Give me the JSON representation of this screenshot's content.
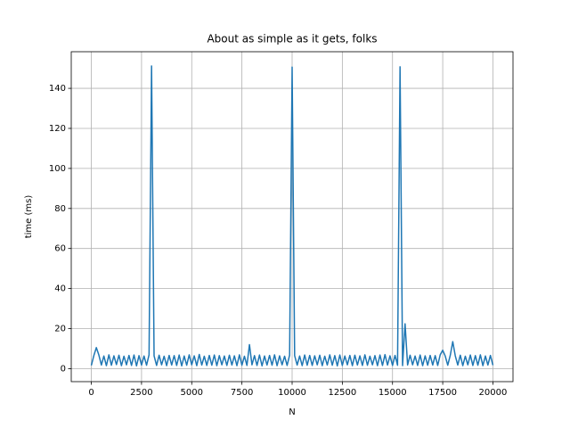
{
  "chart_data": {
    "type": "line",
    "title": "About as simple as it gets, folks",
    "x_label": "N",
    "y_label": "time (ms)",
    "x": [
      0,
      125,
      250,
      375,
      500,
      625,
      750,
      875,
      1000,
      1125,
      1250,
      1375,
      1500,
      1625,
      1750,
      1875,
      2000,
      2125,
      2250,
      2375,
      2500,
      2625,
      2750,
      2875,
      3000,
      3125,
      3250,
      3375,
      3500,
      3625,
      3750,
      3875,
      4000,
      4125,
      4250,
      4375,
      4500,
      4625,
      4750,
      4875,
      5000,
      5125,
      5250,
      5375,
      5500,
      5625,
      5750,
      5875,
      6000,
      6125,
      6250,
      6375,
      6500,
      6625,
      6750,
      6875,
      7000,
      7125,
      7250,
      7375,
      7500,
      7625,
      7750,
      7875,
      8000,
      8125,
      8250,
      8375,
      8500,
      8625,
      8750,
      8875,
      9000,
      9125,
      9250,
      9375,
      9500,
      9625,
      9750,
      9875,
      10000,
      10125,
      10250,
      10375,
      10500,
      10625,
      10750,
      10875,
      11000,
      11125,
      11250,
      11375,
      11500,
      11625,
      11750,
      11875,
      12000,
      12125,
      12250,
      12375,
      12500,
      12625,
      12750,
      12875,
      13000,
      13125,
      13250,
      13375,
      13500,
      13625,
      13750,
      13875,
      14000,
      14125,
      14250,
      14375,
      14500,
      14625,
      14750,
      14875,
      15000,
      15125,
      15250,
      15375,
      15500,
      15625,
      15750,
      15875,
      16000,
      16125,
      16250,
      16375,
      16500,
      16625,
      16750,
      16875,
      17000,
      17125,
      17250,
      17375,
      17500,
      17625,
      17750,
      17875,
      18000,
      18125,
      18250,
      18375,
      18500,
      18625,
      18750,
      18875,
      19000,
      19125,
      19250,
      19375,
      19500,
      19625,
      19750,
      19875,
      20000
    ],
    "values": [
      1.6,
      6.5,
      10.5,
      6.8,
      1.8,
      6.3,
      1.5,
      6.9,
      1.7,
      6.4,
      2.0,
      6.7,
      1.5,
      6.2,
      1.9,
      6.6,
      1.6,
      6.8,
      1.4,
      6.5,
      1.8,
      6.3,
      1.7,
      6.9,
      151.2,
      6.4,
      1.6,
      6.7,
      1.9,
      6.2,
      1.5,
      6.6,
      1.8,
      6.5,
      1.6,
      6.8,
      1.4,
      6.3,
      1.7,
      6.9,
      1.9,
      6.4,
      1.5,
      7.1,
      1.8,
      6.2,
      1.6,
      6.6,
      1.7,
      6.8,
      1.5,
      6.5,
      1.9,
      6.3,
      1.6,
      6.7,
      1.8,
      6.4,
      1.5,
      6.9,
      1.7,
      6.2,
      1.6,
      12.0,
      1.9,
      6.5,
      1.6,
      6.8,
      1.4,
      6.3,
      1.8,
      6.6,
      1.7,
      6.9,
      1.5,
      6.4,
      1.9,
      6.2,
      1.6,
      6.7,
      150.6,
      6.5,
      1.8,
      6.3,
      1.5,
      6.8,
      1.7,
      6.6,
      1.6,
      6.4,
      1.9,
      6.7,
      1.5,
      6.2,
      1.8,
      6.9,
      1.7,
      6.5,
      1.4,
      6.8,
      1.6,
      6.3,
      1.9,
      6.6,
      1.5,
      6.7,
      1.8,
      6.4,
      1.6,
      6.9,
      1.7,
      6.2,
      1.9,
      6.5,
      1.5,
      6.8,
      1.6,
      7.0,
      1.8,
      6.4,
      1.6,
      6.6,
      1.7,
      150.8,
      1.5,
      22.4,
      1.8,
      6.7,
      1.9,
      6.3,
      1.6,
      6.8,
      1.5,
      6.4,
      1.7,
      6.6,
      1.8,
      6.5,
      1.6,
      6.9,
      9.2,
      6.3,
      1.7,
      6.6,
      13.5,
      6.4,
      1.8,
      6.7,
      1.5,
      6.2,
      1.9,
      6.8,
      1.6,
      6.5,
      1.7,
      6.9,
      1.5,
      6.3,
      1.8,
      6.6,
      1.7
    ],
    "color": "#1f77b4",
    "xlim": [
      -1000,
      21000
    ],
    "ylim": [
      -6.5,
      158.3
    ],
    "xticks": [
      0,
      2500,
      5000,
      7500,
      10000,
      12500,
      15000,
      17500,
      20000
    ],
    "yticks": [
      0,
      20,
      40,
      60,
      80,
      100,
      120,
      140
    ],
    "grid": true
  }
}
